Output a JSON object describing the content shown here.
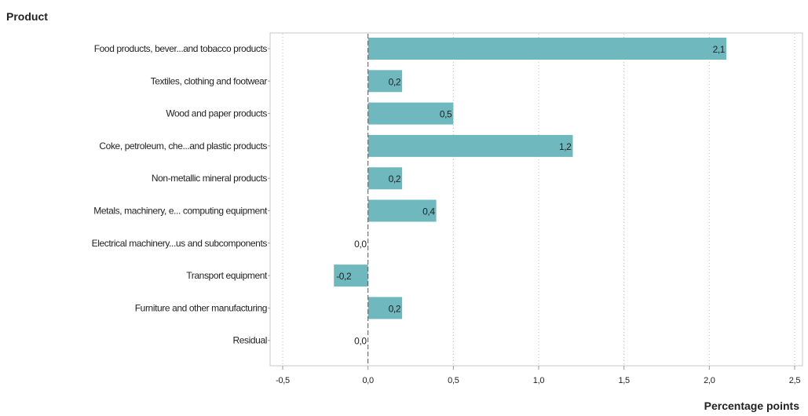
{
  "chart_data": {
    "type": "bar",
    "orientation": "horizontal",
    "ylabel": "Product",
    "xlabel": "Percentage points",
    "categories": [
      "Food products, bever...and tobacco products",
      "Textiles, clothing and footwear",
      "Wood and paper products",
      "Coke, petroleum, che...and plastic products",
      "Non-metallic mineral products",
      "Metals, machinery, e... computing equipment",
      "Electrical machinery...us and subcomponents",
      "Transport equipment",
      "Furniture and other manufacturing",
      "Residual"
    ],
    "values": [
      2.1,
      0.2,
      0.5,
      1.2,
      0.2,
      0.4,
      0.0,
      -0.2,
      0.2,
      0.0
    ],
    "value_labels": [
      "2,1",
      "0,2",
      "0,5",
      "1,2",
      "0,2",
      "0,4",
      "0,0",
      "-0,2",
      "0,2",
      "0,0"
    ],
    "xlim": [
      -0.5,
      2.5
    ],
    "xticks": [
      -0.5,
      0.0,
      0.5,
      1.0,
      1.5,
      2.0,
      2.5
    ],
    "xtick_labels": [
      "-0,5",
      "0,0",
      "0,5",
      "1,0",
      "1,5",
      "2,0",
      "2,5"
    ],
    "grid": "vertical-dotted",
    "legend": "none",
    "bar_color": "#6fb8be"
  }
}
